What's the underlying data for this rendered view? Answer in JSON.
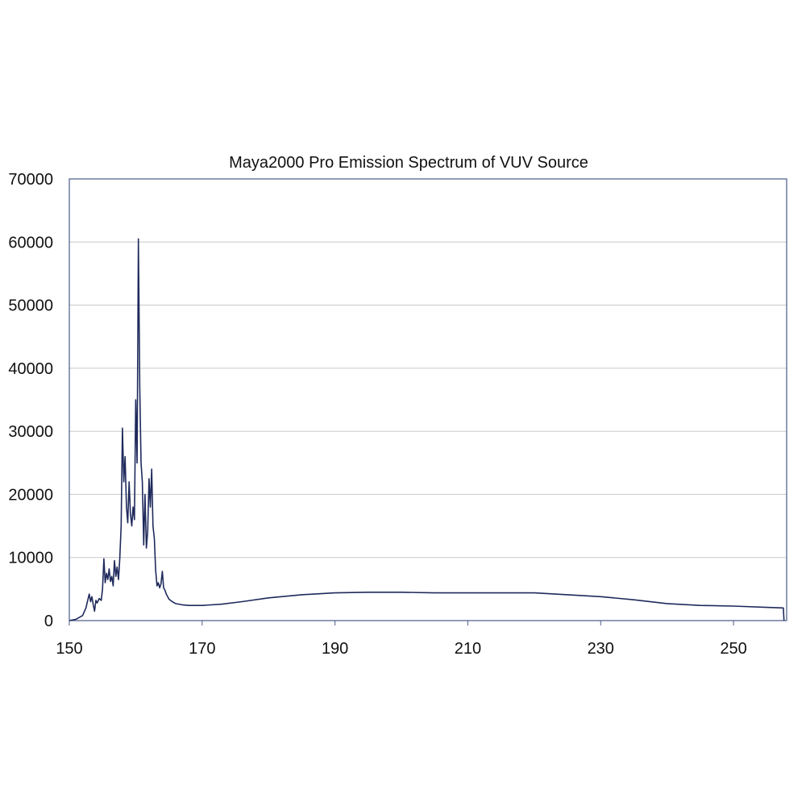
{
  "chart_data": {
    "type": "line",
    "title": "Maya2000 Pro Emission Spectrum of VUV Source",
    "xlabel": "",
    "ylabel": "",
    "xlim": [
      150,
      258
    ],
    "ylim": [
      0,
      70000
    ],
    "x_ticks": [
      150,
      170,
      190,
      210,
      230,
      250
    ],
    "x_tick_labels": [
      "150",
      "170",
      "190",
      "210",
      "230",
      "250"
    ],
    "y_ticks": [
      0,
      10000,
      20000,
      30000,
      40000,
      50000,
      60000,
      70000
    ],
    "y_tick_labels": [
      "0",
      "10000",
      "20000",
      "30000",
      "40000",
      "50000",
      "60000",
      "70000"
    ],
    "grid": "horizontal",
    "legend": "none",
    "colors": {
      "line": "#1f2a5c",
      "grid": "#c8c8c8",
      "frame": "#4a5a8a"
    },
    "series": [
      {
        "x": [
          150.0,
          151.0,
          152.0,
          152.5,
          153.0,
          153.2,
          153.4,
          153.6,
          153.8,
          154.0,
          154.2,
          154.5,
          154.8,
          155.0,
          155.2,
          155.4,
          155.6,
          155.8,
          156.0,
          156.2,
          156.4,
          156.6,
          156.8,
          157.0,
          157.2,
          157.4,
          157.6,
          157.8,
          158.0,
          158.2,
          158.4,
          158.6,
          158.8,
          159.0,
          159.2,
          159.4,
          159.6,
          159.8,
          160.0,
          160.2,
          160.4,
          160.6,
          160.8,
          161.0,
          161.2,
          161.4,
          161.6,
          161.8,
          162.0,
          162.2,
          162.4,
          162.6,
          162.8,
          163.0,
          163.2,
          163.4,
          163.6,
          163.8,
          164.0,
          164.2,
          164.4,
          164.6,
          164.8,
          165.0,
          165.5,
          166.0,
          167.0,
          168.0,
          170.0,
          173.0,
          176.0,
          180.0,
          185.0,
          190.0,
          195.0,
          200.0,
          205.0,
          210.0,
          215.0,
          220.0,
          225.0,
          230.0,
          235.0,
          240.0,
          245.0,
          250.0,
          255.0,
          257.5,
          257.6
        ],
        "y": [
          0,
          200,
          800,
          2000,
          4200,
          3000,
          3800,
          2500,
          1500,
          3200,
          2800,
          3500,
          3200,
          5000,
          9800,
          6000,
          7500,
          6500,
          8200,
          6200,
          7000,
          5500,
          9500,
          7000,
          8500,
          6500,
          9800,
          15000,
          30500,
          22000,
          26000,
          18000,
          15500,
          22000,
          17000,
          15000,
          18000,
          16000,
          35000,
          25000,
          60500,
          37000,
          25000,
          22000,
          12000,
          20000,
          11500,
          14000,
          22500,
          18000,
          24000,
          15000,
          13000,
          8000,
          5500,
          6000,
          5200,
          5800,
          7800,
          5200,
          4800,
          4200,
          3800,
          3400,
          3000,
          2700,
          2500,
          2400,
          2400,
          2600,
          3000,
          3600,
          4100,
          4400,
          4500,
          4500,
          4400,
          4400,
          4400,
          4400,
          4100,
          3800,
          3300,
          2700,
          2400,
          2300,
          2100,
          2000,
          0
        ]
      }
    ]
  }
}
